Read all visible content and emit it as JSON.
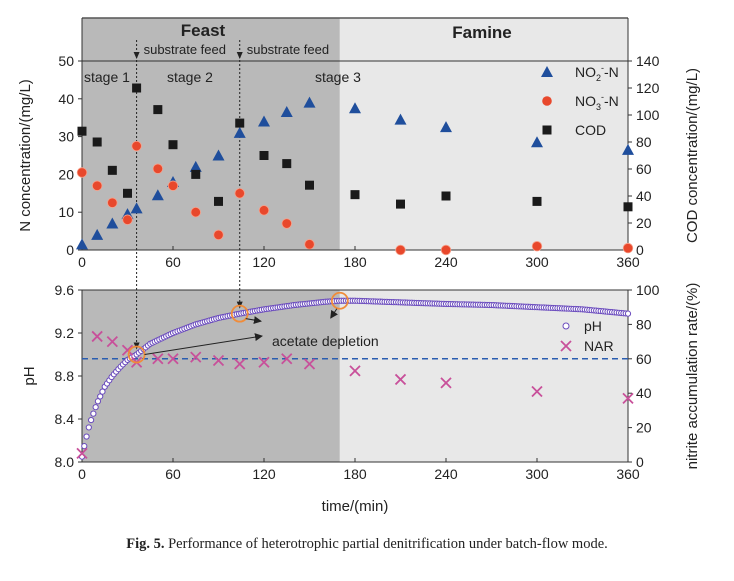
{
  "chart_data": [
    {
      "type": "scatter",
      "panel": "top",
      "ylabel": "N concentration/(mg/L)",
      "y2label": "COD concentration/(mg/L)",
      "xlim": [
        0,
        360
      ],
      "ylim": [
        0,
        50
      ],
      "y2lim": [
        0,
        140
      ],
      "xticks": [
        "0",
        "60",
        "120",
        "180",
        "240",
        "300",
        "360"
      ],
      "yticks": [
        "0",
        "10",
        "20",
        "30",
        "40",
        "50"
      ],
      "y2ticks": [
        "0",
        "20",
        "40",
        "60",
        "80",
        "100",
        "120",
        "140"
      ],
      "phases": [
        {
          "label": "Feast",
          "range": [
            0,
            170
          ]
        },
        {
          "label": "Famine",
          "range": [
            170,
            360
          ]
        }
      ],
      "stages": [
        "stage 1",
        "stage 2",
        "stage 3"
      ],
      "feeds": [
        {
          "x": 36,
          "label": "substrate feed"
        },
        {
          "x": 104,
          "label": "substrate feed"
        }
      ],
      "legend": {
        "position": "top-right"
      },
      "series": [
        {
          "name": "NO2- -N",
          "label_main": "NO",
          "label_sub": "2",
          "label_sup": "-",
          "label_tail": "-N",
          "marker": "triangle",
          "color": "#1f4e9c",
          "axis": "left",
          "x": [
            0,
            10,
            20,
            30,
            36,
            50,
            60,
            75,
            90,
            104,
            120,
            135,
            150,
            180,
            210,
            240,
            300,
            360
          ],
          "y": [
            1.5,
            4,
            7,
            9.5,
            11,
            14.5,
            18,
            22,
            25,
            31,
            34,
            36.5,
            39,
            37.5,
            34.5,
            32.5,
            28.5,
            26.5
          ]
        },
        {
          "name": "NO3- -N",
          "label_main": "NO",
          "label_sub": "3",
          "label_sup": "-",
          "label_tail": "-N",
          "marker": "circle",
          "color": "#e8482c",
          "axis": "left",
          "x": [
            0,
            10,
            20,
            30,
            36,
            50,
            60,
            75,
            90,
            104,
            120,
            135,
            150,
            210,
            240,
            300,
            360
          ],
          "y": [
            20.5,
            17,
            12.5,
            8,
            27.5,
            21.5,
            17,
            10,
            4,
            15,
            10.5,
            7,
            1.5,
            0,
            0,
            1,
            0.5
          ]
        },
        {
          "name": "COD",
          "marker": "square",
          "color": "#1a1a1a",
          "axis": "right",
          "x": [
            0,
            10,
            20,
            30,
            36,
            50,
            60,
            75,
            90,
            104,
            120,
            135,
            150,
            180,
            210,
            240,
            300,
            360
          ],
          "y": [
            88,
            80,
            59,
            42,
            120,
            104,
            78,
            56,
            36,
            94,
            70,
            64,
            48,
            41,
            34,
            40,
            36,
            32
          ]
        }
      ]
    },
    {
      "type": "scatter",
      "panel": "bottom",
      "xlabel": "time/(min)",
      "ylabel": "pH",
      "y2label": "nitrite accumulation rate/(%)",
      "xlim": [
        0,
        360
      ],
      "ylim": [
        8.0,
        9.6
      ],
      "y2lim": [
        0,
        100
      ],
      "xticks": [
        "0",
        "60",
        "120",
        "180",
        "240",
        "300",
        "360"
      ],
      "yticks": [
        "8.0",
        "8.4",
        "8.8",
        "9.2",
        "9.6"
      ],
      "y2ticks": [
        "0",
        "20",
        "40",
        "60",
        "80",
        "100"
      ],
      "reference_line": {
        "axis": "right",
        "value": 60,
        "style": "dashed",
        "color": "#2a5db0"
      },
      "annotation": {
        "text": "acetate depletion",
        "points": [
          36,
          104,
          170
        ]
      },
      "legend": {
        "position": "right"
      },
      "series": [
        {
          "name": "pH",
          "marker": "open-circle",
          "color": "#6a4bbd",
          "axis": "left",
          "x": [
            0,
            2,
            5,
            10,
            15,
            20,
            25,
            30,
            36,
            45,
            60,
            75,
            90,
            104,
            120,
            140,
            160,
            170,
            180,
            200,
            240,
            270,
            300,
            330,
            360
          ],
          "y": [
            8.05,
            8.18,
            8.35,
            8.55,
            8.7,
            8.8,
            8.88,
            8.95,
            9.0,
            9.1,
            9.2,
            9.28,
            9.34,
            9.38,
            9.42,
            9.46,
            9.49,
            9.5,
            9.5,
            9.49,
            9.47,
            9.46,
            9.44,
            9.42,
            9.38
          ]
        },
        {
          "name": "NAR",
          "marker": "x",
          "color": "#c8509a",
          "axis": "right",
          "x": [
            0,
            10,
            20,
            30,
            36,
            50,
            60,
            75,
            90,
            104,
            120,
            135,
            150,
            180,
            210,
            240,
            300,
            360
          ],
          "y": [
            5,
            73,
            70,
            65,
            58,
            60,
            60,
            61,
            59,
            57,
            58,
            60,
            57,
            53,
            48,
            46,
            41,
            37
          ]
        }
      ]
    }
  ],
  "caption": {
    "label": "Fig. 5.",
    "text": "Performance of heterotrophic partial denitrification under batch-flow mode."
  }
}
